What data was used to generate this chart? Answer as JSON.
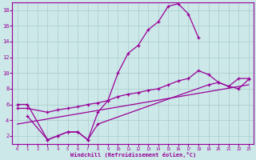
{
  "curve1_x": [
    0,
    1,
    3,
    4,
    5,
    6,
    7,
    8,
    9,
    10,
    11,
    12,
    13,
    14,
    15,
    16,
    17,
    18
  ],
  "curve1_y": [
    6.0,
    6.0,
    1.5,
    2.0,
    2.5,
    2.5,
    1.5,
    5.0,
    6.5,
    10.0,
    12.5,
    13.5,
    15.5,
    16.5,
    18.5,
    18.8,
    17.5,
    14.5
  ],
  "curve2_x": [
    0,
    1,
    3,
    4,
    5,
    6,
    7,
    8,
    9,
    10,
    11,
    12,
    13,
    14,
    15,
    16,
    17,
    18,
    19,
    20,
    21,
    22,
    23
  ],
  "curve2_y": [
    5.5,
    5.5,
    5.0,
    5.3,
    5.5,
    5.7,
    6.0,
    6.2,
    6.5,
    7.0,
    7.3,
    7.5,
    7.8,
    8.0,
    8.5,
    9.0,
    9.3,
    10.3,
    9.8,
    8.8,
    8.3,
    9.3,
    9.3
  ],
  "curve3_x": [
    0,
    23
  ],
  "curve3_y": [
    3.5,
    8.5
  ],
  "curve4_x": [
    1,
    3,
    4,
    5,
    6,
    7,
    8,
    19,
    20,
    21,
    22,
    23
  ],
  "curve4_y": [
    4.5,
    1.5,
    2.0,
    2.5,
    2.5,
    1.5,
    3.5,
    8.5,
    8.8,
    8.3,
    8.0,
    9.2
  ],
  "color": "#990099",
  "bg_color": "#cce8e8",
  "grid_color": "#aacccc",
  "xlabel": "Windchill (Refroidissement éolien,°C)",
  "ylim": [
    1,
    19
  ],
  "xlim": [
    -0.5,
    23.5
  ],
  "yticks": [
    2,
    4,
    6,
    8,
    10,
    12,
    14,
    16,
    18
  ],
  "xticks": [
    0,
    1,
    2,
    3,
    4,
    5,
    6,
    7,
    8,
    9,
    10,
    11,
    12,
    13,
    14,
    15,
    16,
    17,
    18,
    19,
    20,
    21,
    22,
    23
  ]
}
